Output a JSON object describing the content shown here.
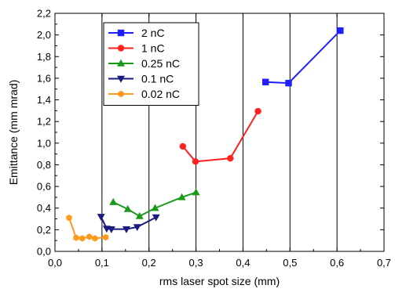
{
  "chart_data": {
    "type": "line",
    "xlabel": "rms laser spot size (mm)",
    "ylabel": "Emittance (mm mrad)",
    "xlim": [
      0.0,
      0.7
    ],
    "ylim": [
      0.0,
      2.2
    ],
    "x_ticks": [
      "0,0",
      "0,1",
      "0,2",
      "0,3",
      "0,4",
      "0,5",
      "0,6",
      "0,7"
    ],
    "y_ticks": [
      "0,0",
      "0,2",
      "0,4",
      "0,6",
      "0,8",
      "1,0",
      "1,2",
      "1,4",
      "1,6",
      "1,8",
      "2,0",
      "2,2"
    ],
    "grid": "vertical",
    "legend_position": "top-left",
    "series": [
      {
        "name": "2 nC",
        "color": "#1f1fff",
        "marker": "square",
        "points": [
          [
            0.448,
            1.565
          ],
          [
            0.497,
            1.555
          ],
          [
            0.607,
            2.04
          ]
        ]
      },
      {
        "name": "1 nC",
        "color": "#ff2020",
        "marker": "circle",
        "points": [
          [
            0.272,
            0.97
          ],
          [
            0.299,
            0.83
          ],
          [
            0.373,
            0.86
          ],
          [
            0.432,
            1.295
          ]
        ]
      },
      {
        "name": "0.25 nC",
        "color": "#1a9a1a",
        "marker": "triangle-up",
        "points": [
          [
            0.124,
            0.455
          ],
          [
            0.155,
            0.39
          ],
          [
            0.18,
            0.325
          ],
          [
            0.213,
            0.4
          ],
          [
            0.27,
            0.5
          ],
          [
            0.3,
            0.545
          ]
        ]
      },
      {
        "name": "0.1 nC",
        "color": "#1a1a80",
        "marker": "triangle-down",
        "points": [
          [
            0.098,
            0.32
          ],
          [
            0.11,
            0.21
          ],
          [
            0.12,
            0.205
          ],
          [
            0.152,
            0.205
          ],
          [
            0.175,
            0.225
          ],
          [
            0.215,
            0.315
          ]
        ]
      },
      {
        "name": "0.02 nC",
        "color": "#ff9a1a",
        "marker": "hexagon",
        "points": [
          [
            0.03,
            0.31
          ],
          [
            0.045,
            0.125
          ],
          [
            0.058,
            0.12
          ],
          [
            0.073,
            0.135
          ],
          [
            0.085,
            0.12
          ],
          [
            0.108,
            0.13
          ]
        ]
      }
    ]
  }
}
